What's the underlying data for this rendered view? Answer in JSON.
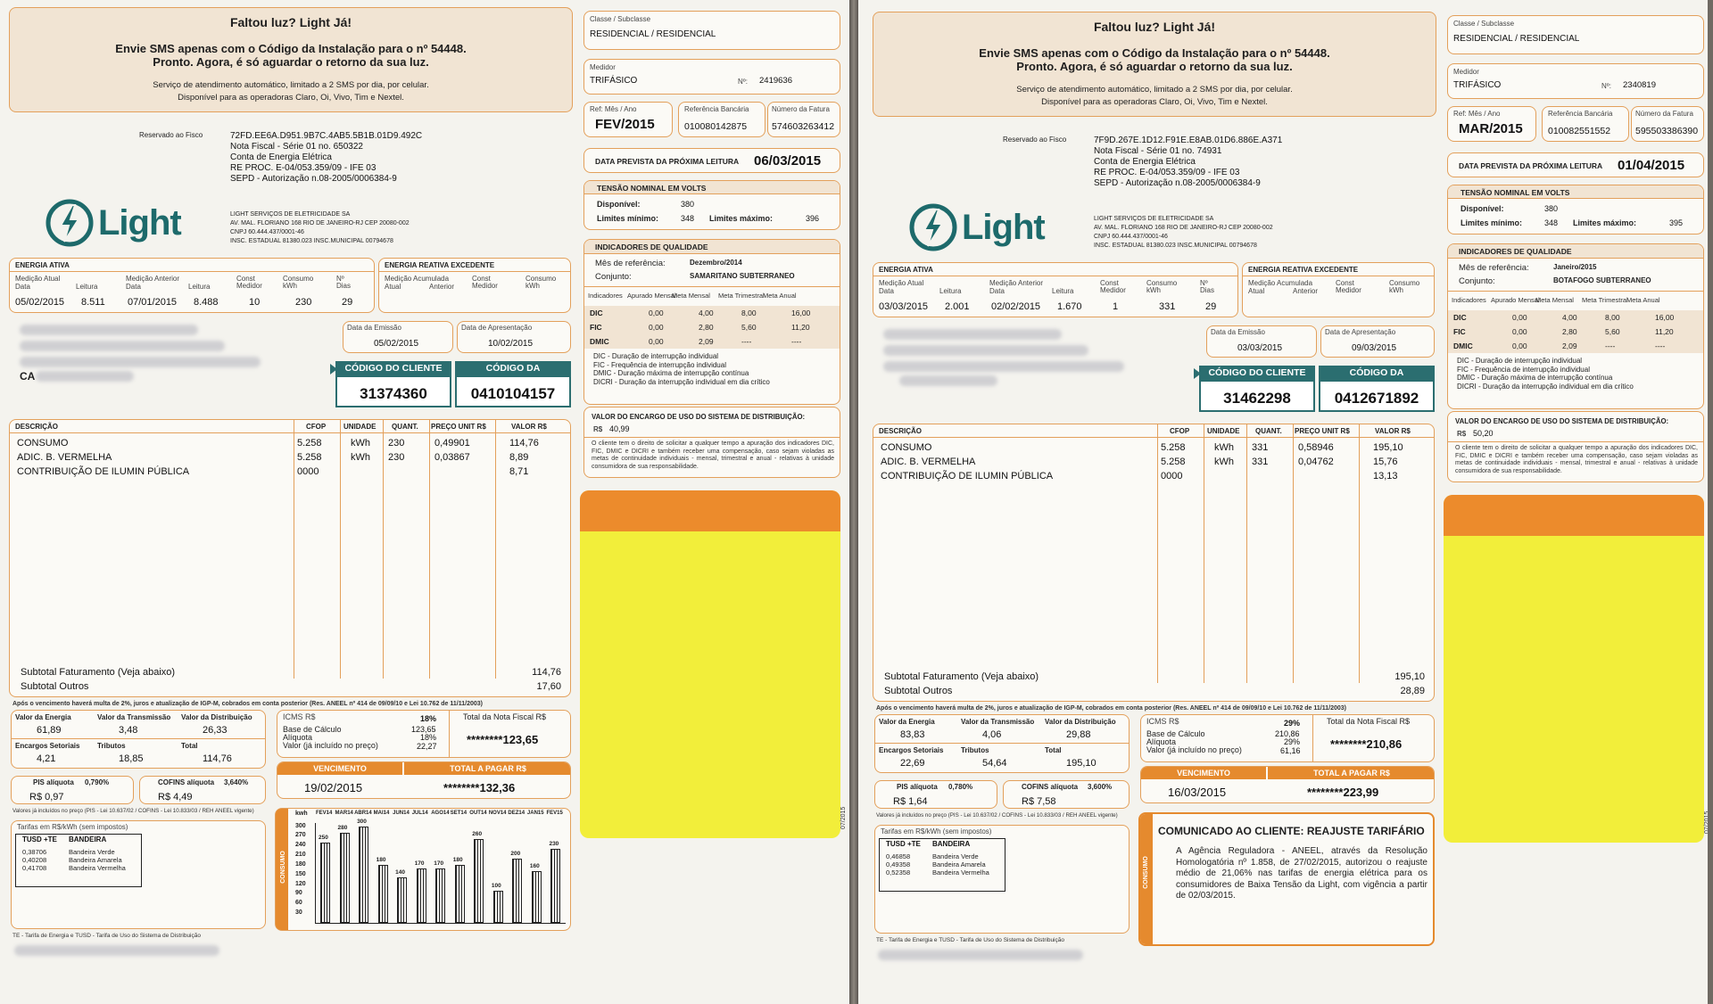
{
  "bills": [
    {
      "sms": {
        "title": "Faltou luz? Light Já!",
        "line1": "Envie SMS apenas com o Código da Instalação para o nº 54448.",
        "line2": "Pronto. Agora, é só aguardar o retorno da sua luz.",
        "line3": "Serviço de atendimento automático, limitado a 2 SMS por dia, por celular.",
        "line4": "Disponível para as operadoras Claro, Oi, Vivo, Tim e Nextel."
      },
      "classe_label": "Classe / Subclasse",
      "classe_value": "RESIDENCIAL / RESIDENCIAL",
      "medidor_label": "Medidor",
      "medidor_value": "TRIFÁSICO",
      "medidor_no_label": "Nº:",
      "medidor_no": "2419636",
      "ref_label": "Ref: Mês / Ano",
      "ref_value": "FEV/2015",
      "refbanc_label": "Referência Bancária",
      "refbanc_value": "010080142875",
      "fatura_label": "Número da Fatura",
      "fatura_value": "574603263412",
      "proxima_label": "DATA PREVISTA DA PRÓXIMA LEITURA",
      "proxima_value": "06/03/2015",
      "fisco_label": "Reservado ao Fisco",
      "fisco_lines": [
        "72FD.EE6A.D951.9B7C.4AB5.5B1B.01D9.492C",
        "Nota Fiscal - Série 01 no. 650322",
        "Conta de Energia Elétrica",
        "RE PROC. E-04/053.359/09 - IFE 03",
        "SEPD - Autorização n.08-2005/0006384-9"
      ],
      "logo_text": "Light",
      "company_lines": [
        "LIGHT SERVIÇOS DE ELETRICIDADE SA",
        "AV. MAL. FLORIANO 168 RIO DE JANEIRO-RJ CEP 20080-002",
        "CNPJ 60.444.437/0001-46",
        "INSC. ESTADUAL 81380.023 INSC.MUNICIPAL 00794678"
      ],
      "tensao_title": "TENSÃO NOMINAL EM VOLTS",
      "disponivel_label": "Disponível:",
      "disponivel_value": "380",
      "lim_min_label": "Limites mínimo:",
      "lim_min_value": "348",
      "lim_max_label": "Limites máximo:",
      "lim_max_value": "396",
      "energia_ativa_title": "ENERGIA ATIVA",
      "ea_headers": [
        "Medição Atual",
        "Data",
        "Leitura",
        "Medição Anterior",
        "Data",
        "Leitura",
        "Const Medidor",
        "Consumo kWh",
        "Nº Dias"
      ],
      "ea_values": [
        "05/02/2015",
        "8.511",
        "07/01/2015",
        "8.488",
        "10",
        "230",
        "29"
      ],
      "reativa_title": "ENERGIA REATIVA EXCEDENTE",
      "reativa_headers": [
        "Medição Acumulada",
        "Atual",
        "Anterior",
        "Const Medidor",
        "Consumo kWh"
      ],
      "qualidade_title": "INDICADORES DE QUALIDADE",
      "mes_ref_label": "Mês de referência:",
      "mes_ref_value": "Dezembro/2014",
      "conjunto_label": "Conjunto:",
      "conjunto_value": "SAMARITANO SUBTERRANEO",
      "q_headers": [
        "Indicadores",
        "Apurado Mensal",
        "Meta Mensal",
        "Meta Trimestral",
        "Meta Anual"
      ],
      "q_rows": [
        [
          "DIC",
          "0,00",
          "4,00",
          "8,00",
          "16,00"
        ],
        [
          "FIC",
          "0,00",
          "2,80",
          "5,60",
          "11,20"
        ],
        [
          "DMIC",
          "0,00",
          "2,09",
          "----",
          "----"
        ]
      ],
      "q_legend": [
        "DIC - Duração de interrupção individual",
        "FIC - Frequência de interrupção individual",
        "DMIC - Duração máxima de interrupção contínua",
        "DICRI - Duração da interrupção individual em dia crítico"
      ],
      "encargo_title": "VALOR DO ENCARGO DE USO DO SISTEMA DE DISTRIBUIÇÃO:",
      "encargo_currency": "R$",
      "encargo_value": "40,99",
      "encargo_text": "O cliente tem o direito de solicitar a qualquer tempo a apuração dos indicadores DIC, FIC, DMIC e DICRI e também receber uma compensação, caso sejam violadas as metas de continuidade individuais - mensal, trimestral e anual - relativas à unidade consumidora de sua responsabilidade.",
      "emissao_label": "Data da Emissão",
      "emissao_value": "05/02/2015",
      "apresentacao_label": "Data de Apresentação",
      "apresentacao_value": "10/02/2015",
      "cod_cliente_label": "CÓDIGO DO CLIENTE",
      "cod_cliente_value": "31374360",
      "cod_instalacao_label": "CÓDIGO DA INSTALAÇÃO",
      "cod_instalacao_value": "0410104157",
      "addr_partial": "CA",
      "items_headers": [
        "DESCRIÇÃO",
        "CFOP",
        "UNIDADE",
        "QUANT.",
        "PREÇO UNIT R$",
        "VALOR R$"
      ],
      "items": [
        [
          "CONSUMO",
          "5.258",
          "kWh",
          "230",
          "0,49901",
          "114,76"
        ],
        [
          "ADIC. B. VERMELHA",
          "5.258",
          "kWh",
          "230",
          "0,03867",
          "8,89"
        ],
        [
          "CONTRIBUIÇÃO DE ILUMIN PÚBLICA",
          "0000",
          "",
          "",
          "",
          "8,71"
        ]
      ],
      "subtotal_fat_label": "Subtotal Faturamento (Veja abaixo)",
      "subtotal_fat_value": "114,76",
      "subtotal_out_label": "Subtotal Outros",
      "subtotal_out_value": "17,60",
      "multa_text": "Após o vencimento haverá multa de 2%, juros e atualização de IGP-M, cobrados em conta posterior (Res. ANEEL nº 414 de 09/09/10 e Lei 10.762 de 11/11/2003)",
      "comp_labels": [
        "Valor da Energia",
        "Valor da Transmissão",
        "Valor da Distribuição",
        "Encargos Setoriais",
        "Tributos",
        "Total"
      ],
      "comp_values": [
        "61,89",
        "3,48",
        "26,33",
        "4,21",
        "18,85",
        "114,76"
      ],
      "icms_label": "ICMS R$",
      "icms_rate": "18%",
      "base_label": "Base de Cálculo",
      "base_value": "123,65",
      "aliquota_label": "Alíquota",
      "aliquota_value": "18%",
      "valor_incl_label": "Valor (já incluído no preço)",
      "valor_incl_value": "22,27",
      "total_nf_label": "Total da Nota Fiscal R$",
      "total_nf_value": "********123,65",
      "vencimento_label": "VENCIMENTO",
      "vencimento_value": "19/02/2015",
      "total_pagar_label": "TOTAL A PAGAR R$",
      "total_pagar_value": "********132,36",
      "pis_label": "PIS alíquota",
      "pis_rate": "0,790%",
      "pis_value": "R$ 0,97",
      "cofins_label": "COFINS alíquota",
      "cofins_rate": "3,640%",
      "cofins_value": "R$ 4,49",
      "pis_note": "Valores já incluídos no preço (PIS - Lei 10.637/02 / COFINS - Lei 10.833/03 / REH ANEEL vigente)",
      "tarifas_title": "Tarifas em R$/kWh (sem impostos)",
      "tarifas_col1": "TUSD +TE",
      "tarifas_col2": "BANDEIRA",
      "tarifas_rows": [
        [
          "0,38706",
          "Bandeira Verde"
        ],
        [
          "0,40208",
          "Bandeira Amarela"
        ],
        [
          "0,41708",
          "Bandeira Vermelha"
        ]
      ],
      "consumo_label": "CONSUMO",
      "chart_unit": "kwh",
      "footer_note": "TE - Tarifa de Energia e TUSD - Tarifa de Uso do Sistema de Distribuição",
      "side_code": "07/2015",
      "chart_data": {
        "type": "bar",
        "categories": [
          "FEV14",
          "MAR14",
          "ABR14",
          "MAI14",
          "JUN14",
          "JUL14",
          "AGO14",
          "SET14",
          "OUT14",
          "NOV14",
          "DEZ14",
          "JAN15",
          "FEV15"
        ],
        "values": [
          250,
          280,
          300,
          180,
          140,
          170,
          170,
          180,
          260,
          100,
          200,
          160,
          230
        ],
        "ylabel": "CONSUMO",
        "yticks": [
          "300",
          "270",
          "240",
          "210",
          "180",
          "150",
          "120",
          "90",
          "60",
          "30"
        ],
        "ylim": [
          0,
          310
        ]
      }
    },
    {
      "sms": {
        "title": "Faltou luz? Light Já!",
        "line1": "Envie SMS apenas com o Código da Instalação para o nº 54448.",
        "line2": "Pronto. Agora, é só aguardar o retorno da sua luz.",
        "line3": "Serviço de atendimento automático, limitado a 2 SMS por dia, por celular.",
        "line4": "Disponível para as operadoras Claro, Oi, Vivo, Tim e Nextel."
      },
      "classe_label": "Classe / Subclasse",
      "classe_value": "RESIDENCIAL / RESIDENCIAL",
      "medidor_label": "Medidor",
      "medidor_value": "TRIFÁSICO",
      "medidor_no_label": "Nº:",
      "medidor_no": "2340819",
      "ref_label": "Ref: Mês / Ano",
      "ref_value": "MAR/2015",
      "refbanc_label": "Referência Bancária",
      "refbanc_value": "010082551552",
      "fatura_label": "Número da Fatura",
      "fatura_value": "595503386390",
      "proxima_label": "DATA PREVISTA DA PRÓXIMA LEITURA",
      "proxima_value": "01/04/2015",
      "fisco_label": "Reservado ao Fisco",
      "fisco_lines": [
        "7F9D.267E.1D12.F91E.E8AB.01D6.886E.A371",
        "Nota Fiscal - Série 01 no. 74931",
        "Conta de Energia Elétrica",
        "RE PROC. E-04/053.359/09 - IFE 03",
        "SEPD - Autorização n.08-2005/0006384-9"
      ],
      "logo_text": "Light",
      "company_lines": [
        "LIGHT SERVIÇOS DE ELETRICIDADE SA",
        "AV. MAL. FLORIANO 168 RIO DE JANEIRO-RJ CEP 20080-002",
        "CNPJ 60.444.437/0001-46",
        "INSC. ESTADUAL 81380.023 INSC.MUNICIPAL 00794678"
      ],
      "tensao_title": "TENSÃO NOMINAL EM VOLTS",
      "disponivel_label": "Disponível:",
      "disponivel_value": "380",
      "lim_min_label": "Limites mínimo:",
      "lim_min_value": "348",
      "lim_max_label": "Limites máximo:",
      "lim_max_value": "395",
      "energia_ativa_title": "ENERGIA ATIVA",
      "ea_headers": [
        "Medição Atual",
        "Data",
        "Leitura",
        "Medição Anterior",
        "Data",
        "Leitura",
        "Const Medidor",
        "Consumo kWh",
        "Nº Dias"
      ],
      "ea_values": [
        "03/03/2015",
        "2.001",
        "02/02/2015",
        "1.670",
        "1",
        "331",
        "29"
      ],
      "reativa_title": "ENERGIA REATIVA EXCEDENTE",
      "reativa_headers": [
        "Medição Acumulada",
        "Atual",
        "Anterior",
        "Const Medidor",
        "Consumo kWh"
      ],
      "qualidade_title": "INDICADORES DE QUALIDADE",
      "mes_ref_label": "Mês de referência:",
      "mes_ref_value": "Janeiro/2015",
      "conjunto_label": "Conjunto:",
      "conjunto_value": "BOTAFOGO SUBTERRANEO",
      "q_headers": [
        "Indicadores",
        "Apurado Mensal",
        "Meta Mensal",
        "Meta Trimestral",
        "Meta Anual"
      ],
      "q_rows": [
        [
          "DIC",
          "0,00",
          "4,00",
          "8,00",
          "16,00"
        ],
        [
          "FIC",
          "0,00",
          "2,80",
          "5,60",
          "11,20"
        ],
        [
          "DMIC",
          "0,00",
          "2,09",
          "----",
          "----"
        ]
      ],
      "q_legend": [
        "DIC - Duração de interrupção individual",
        "FIC - Frequência de interrupção individual",
        "DMIC - Duração máxima de interrupção contínua",
        "DICRI - Duração da interrupção individual em dia crítico"
      ],
      "encargo_title": "VALOR DO ENCARGO DE USO DO SISTEMA DE DISTRIBUIÇÃO:",
      "encargo_currency": "R$",
      "encargo_value": "50,20",
      "encargo_text": "O cliente tem o direito de solicitar a qualquer tempo a apuração dos indicadores DIC, FIC, DMIC e DICRI e também receber uma compensação, caso sejam violadas as metas de continuidade individuais - mensal, trimestral e anual - relativas à unidade consumidora de sua responsabilidade.",
      "emissao_label": "Data da Emissão",
      "emissao_value": "03/03/2015",
      "apresentacao_label": "Data de Apresentação",
      "apresentacao_value": "09/03/2015",
      "cod_cliente_label": "CÓDIGO DO CLIENTE",
      "cod_cliente_value": "31462298",
      "cod_instalacao_label": "CÓDIGO DA INSTALAÇÃO",
      "cod_instalacao_value": "0412671892",
      "addr_partial": "",
      "items_headers": [
        "DESCRIÇÃO",
        "CFOP",
        "UNIDADE",
        "QUANT.",
        "PREÇO UNIT R$",
        "VALOR R$"
      ],
      "items": [
        [
          "CONSUMO",
          "5.258",
          "kWh",
          "331",
          "0,58946",
          "195,10"
        ],
        [
          "ADIC. B. VERMELHA",
          "5.258",
          "kWh",
          "331",
          "0,04762",
          "15,76"
        ],
        [
          "CONTRIBUIÇÃO DE ILUMIN PÚBLICA",
          "0000",
          "",
          "",
          "",
          "13,13"
        ]
      ],
      "subtotal_fat_label": "Subtotal Faturamento (Veja abaixo)",
      "subtotal_fat_value": "195,10",
      "subtotal_out_label": "Subtotal Outros",
      "subtotal_out_value": "28,89",
      "multa_text": "Após o vencimento haverá multa de 2%, juros e atualização de IGP-M, cobrados em conta posterior (Res. ANEEL nº 414 de 09/09/10 e Lei 10.762 de 11/11/2003)",
      "comp_labels": [
        "Valor da Energia",
        "Valor da Transmissão",
        "Valor da Distribuição",
        "Encargos Setoriais",
        "Tributos",
        "Total"
      ],
      "comp_values": [
        "83,83",
        "4,06",
        "29,88",
        "22,69",
        "54,64",
        "195,10"
      ],
      "icms_label": "ICMS R$",
      "icms_rate": "29%",
      "base_label": "Base de Cálculo",
      "base_value": "210,86",
      "aliquota_label": "Alíquota",
      "aliquota_value": "29%",
      "valor_incl_label": "Valor (já incluído no preço)",
      "valor_incl_value": "61,16",
      "total_nf_label": "Total da Nota Fiscal R$",
      "total_nf_value": "********210,86",
      "vencimento_label": "VENCIMENTO",
      "vencimento_value": "16/03/2015",
      "total_pagar_label": "TOTAL A PAGAR R$",
      "total_pagar_value": "********223,99",
      "pis_label": "PIS alíquota",
      "pis_rate": "0,780%",
      "pis_value": "R$ 1,64",
      "cofins_label": "COFINS alíquota",
      "cofins_rate": "3,600%",
      "cofins_value": "R$ 7,58",
      "pis_note": "Valores já incluídos no preço (PIS - Lei 10.637/02 / COFINS - Lei 10.833/03 / REH ANEEL vigente)",
      "tarifas_title": "Tarifas em R$/kWh (sem impostos)",
      "tarifas_col1": "TUSD +TE",
      "tarifas_col2": "BANDEIRA",
      "tarifas_rows": [
        [
          "0,46858",
          "Bandeira Verde"
        ],
        [
          "0,49358",
          "Bandeira Amarela"
        ],
        [
          "0,52358",
          "Bandeira Vermelha"
        ]
      ],
      "footer_note": "TE - Tarifa de Energia e TUSD - Tarifa de Uso do Sistema de Distribuição",
      "side_code": "07/2015",
      "comunicado": {
        "title": "COMUNICADO AO CLIENTE: REAJUSTE TARIFÁRIO",
        "side": "CONSUMO",
        "text": "A Agência Reguladora - ANEEL, através da Resolução Homologatória nº 1.858, de 27/02/2015, autorizou o reajuste médio de 21,06% nas tarifas de energia elétrica para os consumidores de Baixa Tensão da Light, com vigência a partir de 02/03/2015."
      }
    }
  ]
}
